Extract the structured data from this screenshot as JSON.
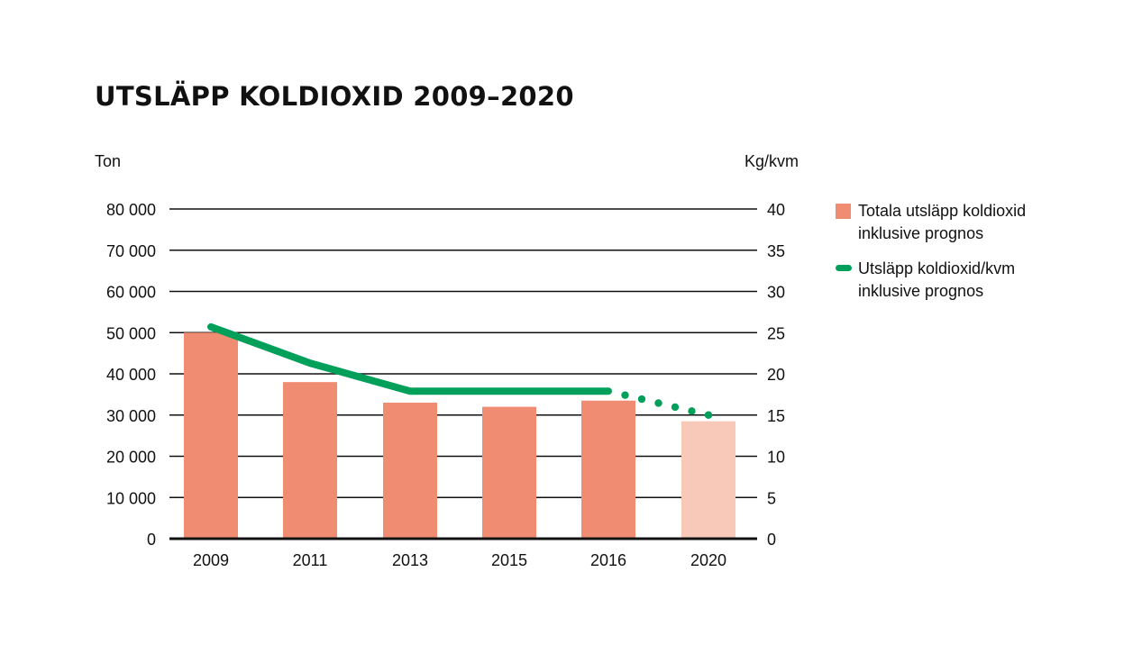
{
  "chart_data": {
    "type": "bar",
    "title": "UTSLÄPP KOLDIOXID 2009–2020",
    "left_axis_unit": "Ton",
    "right_axis_unit": "Kg/kvm",
    "categories": [
      "2009",
      "2011",
      "2013",
      "2015",
      "2016",
      "2020"
    ],
    "y_left_ticks": [
      "0",
      "10 000",
      "20 000",
      "30 000",
      "40 000",
      "50 000",
      "60 000",
      "70 000",
      "80 000"
    ],
    "y_right_ticks": [
      "0",
      "5",
      "10",
      "15",
      "20",
      "25",
      "30",
      "35",
      "40"
    ],
    "ylim_left": [
      0,
      80000
    ],
    "ylim_right": [
      0,
      40
    ],
    "grid": true,
    "legend_position": "right",
    "series": [
      {
        "name": "Totala utsläpp koldioxid inklusive prognos",
        "type": "bar",
        "axis": "left",
        "values": [
          50000,
          38000,
          33000,
          32000,
          33500,
          28500
        ],
        "forecast": [
          false,
          false,
          false,
          false,
          false,
          true
        ],
        "color": "#f08c72",
        "forecast_color": "#f8c9b8"
      },
      {
        "name": "Utsläpp koldioxid/kvm inklusive prognos",
        "type": "line",
        "axis": "right",
        "values": [
          25.7,
          21.3,
          17.9,
          17.9,
          17.9,
          15.0
        ],
        "forecast": [
          false,
          false,
          false,
          false,
          false,
          true
        ],
        "color": "#00a05a"
      }
    ]
  },
  "legend": {
    "bars_label_1": "Totala utsläpp koldioxid",
    "bars_label_2": "inklusive prognos",
    "line_label_1": "Utsläpp koldioxid/kvm",
    "line_label_2": "inklusive prognos"
  }
}
